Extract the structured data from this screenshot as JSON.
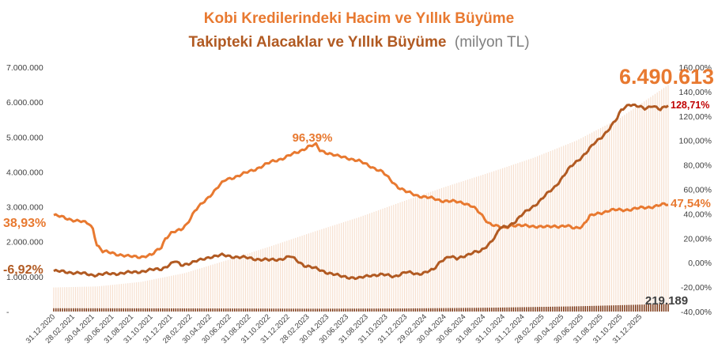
{
  "chart_data": {
    "type": "bar",
    "title_line1": "Kobi  Kredilerindeki  Hacim ve Yıllık Büyüme",
    "title_line2": "Takipteki Alacaklar ve Yıllık Büyüme",
    "title_unit": "(milyon TL)",
    "ylim_left": [
      0,
      7000000
    ],
    "ylim_right": [
      -40,
      160
    ],
    "left_ticks": [
      "-",
      "1.000.000",
      "2.000.000",
      "3.000.000",
      "4.000.000",
      "5.000.000",
      "6.000.000",
      "7.000.000"
    ],
    "right_ticks": [
      "-40,00%",
      "-20,00%",
      "0,00%",
      "20,00%",
      "40,00%",
      "60,00%",
      "80,00%",
      "100,00%",
      "120,00%",
      "140,00%",
      "160,00%"
    ],
    "x_ticks": [
      "31.12.2020",
      "28.02.2021",
      "30.04.2021",
      "30.06.2021",
      "31.08.2021",
      "31.10.2021",
      "31.12.2021",
      "28.02.2022",
      "30.04.2022",
      "30.06.2022",
      "31.08.2022",
      "31.10.2022",
      "31.12.2022",
      "28.02.2023",
      "30.04.2023",
      "30.06.2023",
      "31.08.2023",
      "31.10.2023",
      "31.12.2023",
      "29.02.2024",
      "30.04.2024",
      "30.06.2024",
      "31.08.2024",
      "31.10.2024",
      "31.12.2024",
      "28.02.2025",
      "30.04.2025",
      "30.06.2025",
      "31.08.2025",
      "31.10.2025",
      "31.12.2025"
    ],
    "annotations": {
      "credit_volume_last": "6.490.613",
      "credit_growth_first": "38,93%",
      "credit_growth_peak": "96,39%",
      "credit_growth_last": "47,54%",
      "npl_growth_first": "-6,92%",
      "npl_growth_last": "128,71%",
      "npl_volume_last": "219.189"
    },
    "series": [
      {
        "key": "kredi_hacmi",
        "axis": "left",
        "kind": "bar",
        "color": "#f7e0cf",
        "anchors": [
          [
            0,
            690000
          ],
          [
            20,
            720000
          ],
          [
            40,
            850000
          ],
          [
            60,
            1100000
          ],
          [
            80,
            1480000
          ],
          [
            100,
            1880000
          ],
          [
            120,
            2300000
          ],
          [
            140,
            2700000
          ],
          [
            160,
            3150000
          ],
          [
            180,
            3580000
          ],
          [
            200,
            3980000
          ],
          [
            220,
            4400000
          ],
          [
            240,
            4900000
          ],
          [
            260,
            5550000
          ],
          [
            282,
            6490613
          ]
        ]
      },
      {
        "key": "takipteki_hacim",
        "axis": "left",
        "kind": "bar",
        "color": "#7a3512",
        "anchors": [
          [
            0,
            95000
          ],
          [
            40,
            92000
          ],
          [
            80,
            88000
          ],
          [
            120,
            82000
          ],
          [
            160,
            88000
          ],
          [
            200,
            110000
          ],
          [
            240,
            150000
          ],
          [
            282,
            219189
          ]
        ]
      },
      {
        "key": "kredi_buyume",
        "axis": "right",
        "kind": "line",
        "color": "#e87930",
        "anchors": [
          [
            0,
            38.9
          ],
          [
            10,
            35
          ],
          [
            18,
            32
          ],
          [
            20,
            28
          ],
          [
            22,
            15
          ],
          [
            25,
            9
          ],
          [
            30,
            8
          ],
          [
            38,
            5
          ],
          [
            45,
            5
          ],
          [
            50,
            6
          ],
          [
            52,
            9
          ],
          [
            55,
            13
          ],
          [
            57,
            20
          ],
          [
            60,
            24
          ],
          [
            65,
            27
          ],
          [
            68,
            32
          ],
          [
            72,
            42
          ],
          [
            78,
            52
          ],
          [
            84,
            62
          ],
          [
            88,
            68
          ],
          [
            92,
            70
          ],
          [
            96,
            72
          ],
          [
            102,
            76
          ],
          [
            108,
            80
          ],
          [
            112,
            83
          ],
          [
            118,
            86
          ],
          [
            124,
            90
          ],
          [
            130,
            95
          ],
          [
            134,
            96.39
          ],
          [
            136,
            92
          ],
          [
            140,
            90
          ],
          [
            145,
            87
          ],
          [
            150,
            86
          ],
          [
            156,
            83
          ],
          [
            162,
            79
          ],
          [
            168,
            74
          ],
          [
            172,
            68
          ],
          [
            176,
            62
          ],
          [
            180,
            58
          ],
          [
            186,
            55
          ],
          [
            192,
            53
          ],
          [
            198,
            51
          ],
          [
            204,
            50
          ],
          [
            210,
            49
          ],
          [
            214,
            46
          ],
          [
            218,
            40
          ],
          [
            222,
            33
          ],
          [
            226,
            30
          ],
          [
            230,
            28
          ],
          [
            234,
            31
          ],
          [
            240,
            30
          ],
          [
            246,
            30
          ],
          [
            252,
            29
          ],
          [
            256,
            30
          ],
          [
            262,
            30
          ],
          [
            266,
            28
          ],
          [
            270,
            30
          ],
          [
            274,
            38
          ],
          [
            278,
            40
          ],
          [
            284,
            43
          ],
          [
            290,
            43
          ],
          [
            296,
            44
          ],
          [
            302,
            45
          ],
          [
            306,
            46
          ],
          [
            310,
            47
          ],
          [
            312,
            47.54
          ]
        ]
      },
      {
        "key": "takipteki_buyume",
        "axis": "right",
        "kind": "line",
        "color": "#b15a22",
        "anchors": [
          [
            0,
            -6.92
          ],
          [
            10,
            -8
          ],
          [
            20,
            -10
          ],
          [
            30,
            -9
          ],
          [
            40,
            -8
          ],
          [
            50,
            -6
          ],
          [
            55,
            -5
          ],
          [
            60,
            -1
          ],
          [
            62,
            1
          ],
          [
            65,
            -2
          ],
          [
            70,
            0
          ],
          [
            75,
            2
          ],
          [
            80,
            5
          ],
          [
            86,
            6
          ],
          [
            92,
            5
          ],
          [
            98,
            4
          ],
          [
            104,
            3
          ],
          [
            110,
            2
          ],
          [
            116,
            3
          ],
          [
            121,
            5
          ],
          [
            124,
            2
          ],
          [
            128,
            -2
          ],
          [
            134,
            -5
          ],
          [
            140,
            -8
          ],
          [
            146,
            -11
          ],
          [
            152,
            -12
          ],
          [
            156,
            -13
          ],
          [
            162,
            -10
          ],
          [
            168,
            -10
          ],
          [
            174,
            -11
          ],
          [
            180,
            -8
          ],
          [
            186,
            -9
          ],
          [
            190,
            -8
          ],
          [
            194,
            -6
          ],
          [
            198,
            2
          ],
          [
            202,
            5
          ],
          [
            206,
            3
          ],
          [
            210,
            6
          ],
          [
            214,
            8
          ],
          [
            218,
            9
          ],
          [
            222,
            15
          ],
          [
            226,
            22
          ],
          [
            228,
            28
          ],
          [
            232,
            30
          ],
          [
            236,
            34
          ],
          [
            240,
            40
          ],
          [
            244,
            45
          ],
          [
            248,
            50
          ],
          [
            252,
            56
          ],
          [
            256,
            62
          ],
          [
            260,
            70
          ],
          [
            264,
            78
          ],
          [
            268,
            84
          ],
          [
            272,
            90
          ],
          [
            276,
            97
          ],
          [
            280,
            103
          ],
          [
            284,
            110
          ],
          [
            288,
            118
          ],
          [
            290,
            125
          ],
          [
            294,
            130
          ],
          [
            298,
            128
          ],
          [
            302,
            126
          ],
          [
            306,
            129
          ],
          [
            310,
            125
          ],
          [
            314,
            128.71
          ]
        ]
      }
    ]
  }
}
